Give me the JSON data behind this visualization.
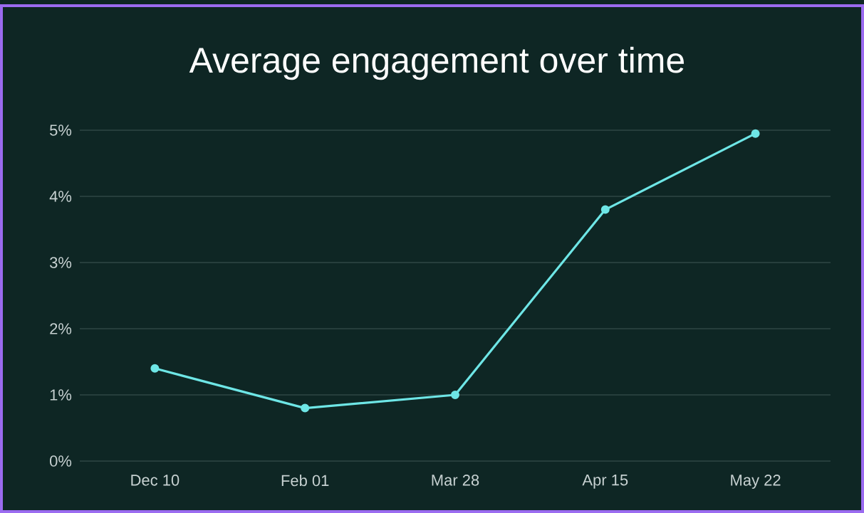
{
  "chart_data": {
    "type": "line",
    "title": "Average engagement over time",
    "categories": [
      "Dec 10",
      "Feb 01",
      "Mar 28",
      "Apr 15",
      "May 22"
    ],
    "series": [
      {
        "color": "#6ee6e6",
        "values": [
          1.4,
          0.8,
          1.0,
          3.8,
          4.95
        ]
      }
    ],
    "ylim": [
      0,
      5
    ],
    "yticks": [
      {
        "value": 0,
        "label": "0%"
      },
      {
        "value": 1,
        "label": "1%"
      },
      {
        "value": 2,
        "label": "2%"
      },
      {
        "value": 3,
        "label": "3%"
      },
      {
        "value": 4,
        "label": "4%"
      },
      {
        "value": 5,
        "label": "5%"
      }
    ],
    "grid": "y",
    "marker": "circle",
    "line_style": "solid"
  }
}
